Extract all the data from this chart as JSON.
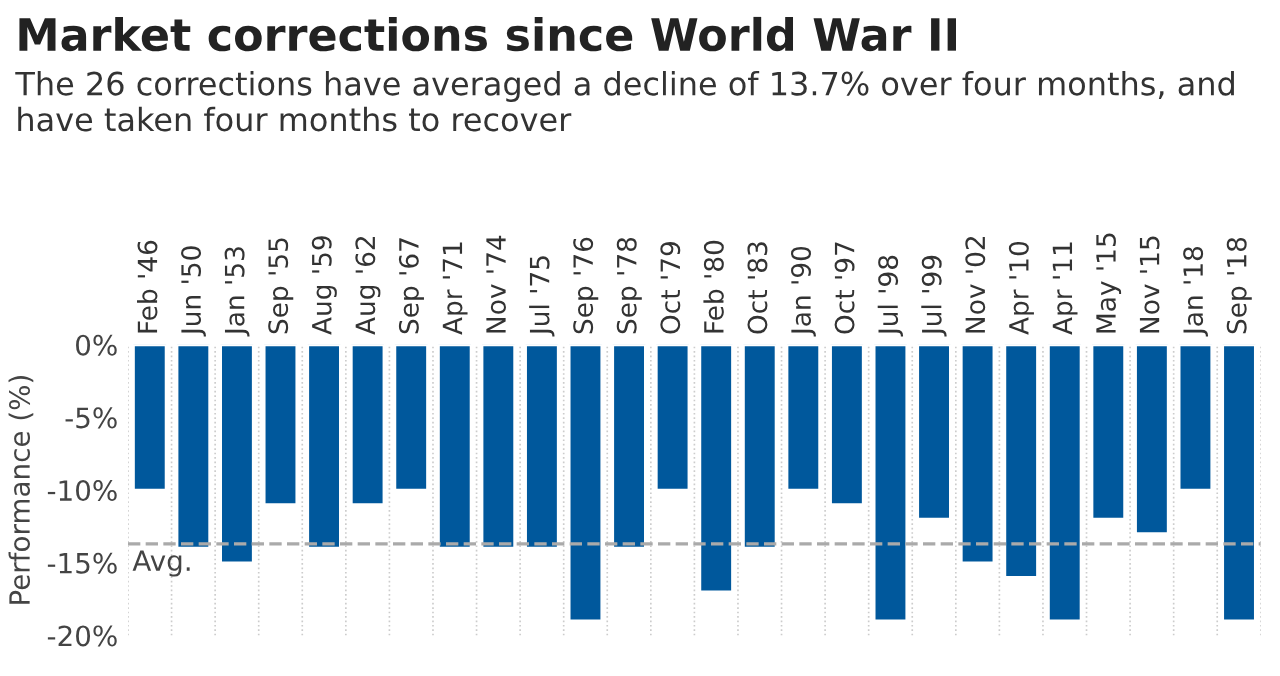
{
  "chart_data": {
    "type": "bar",
    "title": "Market corrections since World War II",
    "subtitle": "The 26 corrections have averaged a decline of 13.7% over four months, and have taken four months to recover",
    "ylabel": "Performance (%)",
    "categories": [
      "Feb '46",
      "Jun '50",
      "Jan '53",
      "Sep '55",
      "Aug '59",
      "Aug '62",
      "Sep '67",
      "Apr '71",
      "Nov '74",
      "Jul '75",
      "Sep '76",
      "Sep '78",
      "Oct '79",
      "Feb '80",
      "Oct '83",
      "Jan '90",
      "Oct '97",
      "Jul '98",
      "Jul '99",
      "Nov '02",
      "Apr '10",
      "Apr '11",
      "May '15",
      "Nov '15",
      "Jan '18",
      "Sep '18"
    ],
    "values": [
      -10,
      -14,
      -15,
      -11,
      -14,
      -11,
      -10,
      -14,
      -14,
      -14,
      -19,
      -14,
      -10,
      -17,
      -14,
      -10,
      -11,
      -19,
      -12,
      -15,
      -16,
      -19,
      -12,
      -13,
      -10,
      -19
    ],
    "color": "#00589c",
    "ylim": [
      -20,
      0
    ],
    "yticks": [
      {
        "value": 0,
        "label": "0%"
      },
      {
        "value": -5,
        "label": "-5%"
      },
      {
        "value": -10,
        "label": "-10%"
      },
      {
        "value": -15,
        "label": "-15%"
      },
      {
        "value": -20,
        "label": "-20%"
      }
    ],
    "ref_lines": [
      {
        "axis": "y",
        "value": -13.7,
        "label": "Avg.",
        "color": "#aaaaaa",
        "line_style": "dashed"
      }
    ],
    "grid": "x"
  }
}
